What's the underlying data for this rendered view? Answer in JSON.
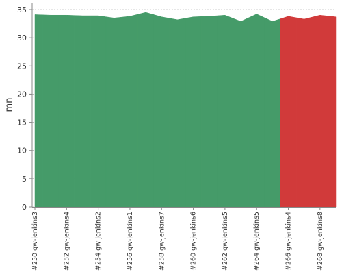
{
  "chart_data": {
    "type": "area",
    "y_label": "mn",
    "categories": [
      "#250 gw-jenkins3",
      null,
      "#252 gw-jenkins4",
      null,
      "#254 gw-jenkins2",
      null,
      "#256 gw-jenkins1",
      null,
      "#258 gw-jenkins7",
      null,
      "#260 gw-jenkins6",
      null,
      "#262 gw-jenkins5",
      null,
      "#264 gw-jenkins5",
      null,
      "#266 gw-jenkins4",
      null,
      "#268 gw-jenkins8",
      null
    ],
    "values": [
      34.1,
      34.0,
      34.0,
      33.9,
      33.9,
      33.5,
      33.8,
      34.5,
      33.7,
      33.2,
      33.7,
      33.8,
      34.0,
      32.9,
      34.2,
      32.9,
      33.8,
      33.3,
      34.0,
      33.7
    ],
    "colors": [
      "#459b69",
      "#459b69",
      "#459b69",
      "#459b69",
      "#459b69",
      "#459b69",
      "#459b69",
      "#459b69",
      "#459b69",
      "#459b69",
      "#459b69",
      "#459b69",
      "#459b69",
      "#459b69",
      "#459b69",
      "#459b69",
      "#d13a3a",
      "#d13a3a",
      "#d13a3a",
      "#d13a3a"
    ],
    "ylim": [
      0,
      35
    ],
    "yticks": [
      0,
      5,
      10,
      15,
      20,
      25,
      30,
      35
    ],
    "grid": true
  }
}
